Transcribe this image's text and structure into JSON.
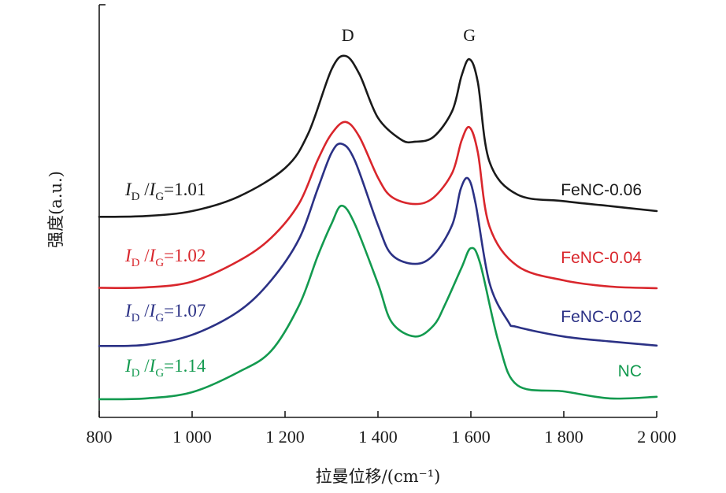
{
  "chart_data": {
    "type": "line",
    "xlabel": "拉曼位移/(cm⁻¹)",
    "ylabel": "强度(a.u.)",
    "xlim": [
      800,
      2000
    ],
    "xticks": [
      800,
      1000,
      1200,
      1400,
      1600,
      1800,
      2000
    ],
    "xtick_labels": [
      "800",
      "1 000",
      "1 200",
      "1 400",
      "1 600",
      "1 800",
      "2 000"
    ],
    "ylim": [
      0,
      1
    ],
    "yticks_shown": false,
    "grid": false,
    "peak_labels": [
      {
        "text": "D",
        "x": 1335
      },
      {
        "text": "G",
        "x": 1597
      }
    ],
    "series": [
      {
        "name": "FeNC-0.06",
        "color": "#1a1a1a",
        "ratio": {
          "I": "I",
          "D": "D",
          "G": "G",
          "value": "=1.01"
        },
        "x": [
          800,
          900,
          1000,
          1100,
          1200,
          1250,
          1300,
          1330,
          1360,
          1400,
          1450,
          1480,
          1520,
          1560,
          1580,
          1597,
          1615,
          1640,
          1700,
          1800,
          1900,
          2000
        ],
        "y": [
          0.486,
          0.488,
          0.5,
          0.535,
          0.604,
          0.688,
          0.843,
          0.876,
          0.832,
          0.726,
          0.673,
          0.668,
          0.68,
          0.743,
          0.828,
          0.868,
          0.812,
          0.62,
          0.54,
          0.524,
          0.512,
          0.5
        ]
      },
      {
        "name": "FeNC-0.04",
        "color": "#d9262c",
        "ratio": {
          "I": "I",
          "D": "D",
          "G": "G",
          "value": "=1.02"
        },
        "x": [
          800,
          900,
          1000,
          1100,
          1170,
          1230,
          1270,
          1300,
          1330,
          1360,
          1400,
          1430,
          1480,
          1520,
          1560,
          1580,
          1597,
          1615,
          1640,
          1700,
          1800,
          1900,
          2000
        ],
        "y": [
          0.314,
          0.315,
          0.329,
          0.379,
          0.435,
          0.518,
          0.623,
          0.687,
          0.716,
          0.68,
          0.581,
          0.534,
          0.517,
          0.533,
          0.593,
          0.671,
          0.703,
          0.642,
          0.463,
          0.367,
          0.332,
          0.317,
          0.313
        ]
      },
      {
        "name": "FeNC-0.02",
        "color": "#2b3185",
        "ratio": {
          "I": "I",
          "D": "D",
          "G": "G",
          "value": "=1.07"
        },
        "x": [
          800,
          900,
          1000,
          1100,
          1170,
          1230,
          1270,
          1300,
          1322,
          1350,
          1400,
          1430,
          1480,
          1520,
          1560,
          1578,
          1594,
          1610,
          1640,
          1680,
          1700,
          1800,
          1900,
          2000
        ],
        "y": [
          0.173,
          0.176,
          0.2,
          0.257,
          0.332,
          0.432,
          0.553,
          0.641,
          0.663,
          0.623,
          0.466,
          0.394,
          0.372,
          0.394,
          0.467,
          0.553,
          0.579,
          0.519,
          0.326,
          0.233,
          0.219,
          0.196,
          0.184,
          0.174
        ]
      },
      {
        "name": "NC",
        "color": "#139a4f",
        "ratio": {
          "I": "I",
          "D": "D",
          "G": "G",
          "value": "=1.14"
        },
        "x": [
          800,
          900,
          1000,
          1100,
          1170,
          1230,
          1270,
          1300,
          1322,
          1350,
          1400,
          1430,
          1480,
          1520,
          1545,
          1580,
          1600,
          1620,
          1660,
          1700,
          1800,
          1900,
          2000
        ],
        "y": [
          0.044,
          0.046,
          0.061,
          0.11,
          0.161,
          0.271,
          0.39,
          0.469,
          0.513,
          0.469,
          0.324,
          0.23,
          0.196,
          0.223,
          0.275,
          0.363,
          0.41,
          0.373,
          0.181,
          0.078,
          0.063,
          0.046,
          0.05
        ]
      }
    ]
  }
}
